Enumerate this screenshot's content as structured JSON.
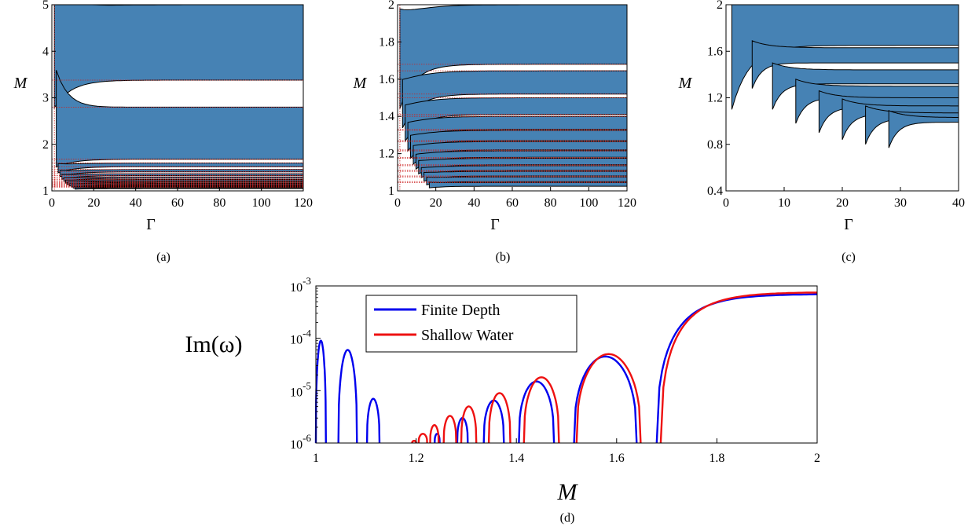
{
  "colors": {
    "stable_region": "#4682b4",
    "finite_depth": "#0000ee",
    "shallow_water": "#ee1111",
    "resonance_lines": "#cc2222"
  },
  "chart_data": [
    {
      "id": "a",
      "type": "area",
      "caption": "(a)",
      "xlabel": "Γ",
      "ylabel": "M",
      "xlim": [
        0,
        120
      ],
      "ylim": [
        1,
        5
      ],
      "xticks": [
        "0",
        "20",
        "40",
        "60",
        "80",
        "100",
        "120"
      ],
      "yticks": [
        "1",
        "2",
        "3",
        "4",
        "5"
      ],
      "bands": [
        {
          "lower": 3.38,
          "upper": 5.0
        },
        {
          "lower": 1.68,
          "upper": 2.8
        },
        {
          "lower": 1.52,
          "upper": 1.6
        },
        {
          "lower": 1.41,
          "upper": 1.46
        },
        {
          "lower": 1.33,
          "upper": 1.37
        },
        {
          "lower": 1.27,
          "upper": 1.3
        },
        {
          "lower": 1.22,
          "upper": 1.245
        },
        {
          "lower": 1.18,
          "upper": 1.2
        },
        {
          "lower": 1.14,
          "upper": 1.16
        },
        {
          "lower": 1.11,
          "upper": 1.125
        },
        {
          "lower": 1.08,
          "upper": 1.095
        },
        {
          "lower": 1.05,
          "upper": 1.065
        }
      ],
      "resonance_lines_M": [
        3.38,
        2.8,
        1.68,
        1.6,
        1.52,
        1.46,
        1.41,
        1.37,
        1.33,
        1.3,
        1.27,
        1.245,
        1.22,
        1.2,
        1.18,
        1.16,
        1.14,
        1.125,
        1.11,
        1.095,
        1.08
      ]
    },
    {
      "id": "b",
      "type": "area",
      "caption": "(b)",
      "xlabel": "Γ",
      "ylabel": "M",
      "xlim": [
        0,
        120
      ],
      "ylim": [
        1,
        2
      ],
      "xticks": [
        "0",
        "20",
        "40",
        "60",
        "80",
        "100",
        "120"
      ],
      "yticks": [
        "1",
        "1.2",
        "1.4",
        "1.6",
        "1.8",
        "2"
      ],
      "bands": [
        {
          "lower": 1.68,
          "upper": 2.0
        },
        {
          "lower": 1.52,
          "upper": 1.645
        },
        {
          "lower": 1.41,
          "upper": 1.5
        },
        {
          "lower": 1.33,
          "upper": 1.4
        },
        {
          "lower": 1.27,
          "upper": 1.325
        },
        {
          "lower": 1.22,
          "upper": 1.265
        },
        {
          "lower": 1.18,
          "upper": 1.215
        },
        {
          "lower": 1.14,
          "upper": 1.175
        },
        {
          "lower": 1.11,
          "upper": 1.135
        },
        {
          "lower": 1.08,
          "upper": 1.105
        },
        {
          "lower": 1.05,
          "upper": 1.075
        },
        {
          "lower": 1.025,
          "upper": 1.045
        }
      ],
      "resonance_lines_M": [
        1.68,
        1.645,
        1.52,
        1.5,
        1.41,
        1.4,
        1.33,
        1.325,
        1.27,
        1.265,
        1.22,
        1.215,
        1.18,
        1.175,
        1.14,
        1.135,
        1.11,
        1.105,
        1.08,
        1.075,
        1.05,
        1.045
      ]
    },
    {
      "id": "c",
      "type": "area",
      "caption": "(c)",
      "xlabel": "Γ",
      "ylabel": "M",
      "xlim": [
        0,
        40
      ],
      "ylim": [
        0.4,
        2
      ],
      "xticks": [
        "0",
        "10",
        "20",
        "30",
        "40"
      ],
      "yticks": [
        "0.4",
        "0.8",
        "1.2",
        "1.6",
        "2"
      ],
      "bands": [
        {
          "start": 1.0,
          "lower": 1.65,
          "upper": 2.0
        },
        {
          "start": 4.5,
          "lower": 1.5,
          "upper": 1.63
        },
        {
          "start": 8.0,
          "lower": 1.32,
          "upper": 1.44
        },
        {
          "start": 12.0,
          "lower": 1.2,
          "upper": 1.3
        },
        {
          "start": 16.0,
          "lower": 1.12,
          "upper": 1.2
        },
        {
          "start": 20.0,
          "lower": 1.06,
          "upper": 1.13
        },
        {
          "start": 24.0,
          "lower": 1.02,
          "upper": 1.07
        },
        {
          "start": 28.0,
          "lower": 0.99,
          "upper": 1.03
        }
      ]
    },
    {
      "id": "d",
      "type": "line",
      "caption": "(d)",
      "xlabel": "M",
      "ylabel": "Im(ω)",
      "xlim": [
        1,
        2
      ],
      "yscale": "log",
      "ylim": [
        1e-06,
        0.001
      ],
      "xticks": [
        "1",
        "1.2",
        "1.4",
        "1.6",
        "1.8",
        "2"
      ],
      "yticks": [
        {
          "base": "10",
          "exp": "-6"
        },
        {
          "base": "10",
          "exp": "-5"
        },
        {
          "base": "10",
          "exp": "-4"
        },
        {
          "base": "10",
          "exp": "-3"
        }
      ],
      "legend": {
        "position": "top-left"
      },
      "series": [
        {
          "name": "Finite Depth",
          "lobes": [
            [
              1.0,
              1.02,
              9e-05
            ],
            [
              1.045,
              1.082,
              6e-05
            ],
            [
              1.102,
              1.127,
              7e-06
            ],
            [
              1.237,
              1.247,
              1.5e-06
            ],
            [
              1.282,
              1.303,
              3e-06
            ],
            [
              1.335,
              1.375,
              6.5e-06
            ],
            [
              1.405,
              1.475,
              1.5e-05
            ],
            [
              1.515,
              1.64,
              4.5e-05
            ]
          ],
          "tail": {
            "start": 1.68,
            "plateau": 0.0007
          }
        },
        {
          "name": "Shallow Water",
          "lobes": [
            [
              1.192,
              1.2,
              1.1e-06
            ],
            [
              1.205,
              1.222,
              1.5e-06
            ],
            [
              1.228,
              1.245,
              2.2e-06
            ],
            [
              1.255,
              1.28,
              3.3e-06
            ],
            [
              1.29,
              1.32,
              5e-06
            ],
            [
              1.345,
              1.388,
              9e-06
            ],
            [
              1.415,
              1.485,
              1.8e-05
            ],
            [
              1.52,
              1.648,
              5e-05
            ]
          ],
          "tail": {
            "start": 1.688,
            "plateau": 0.00076
          }
        }
      ]
    }
  ]
}
